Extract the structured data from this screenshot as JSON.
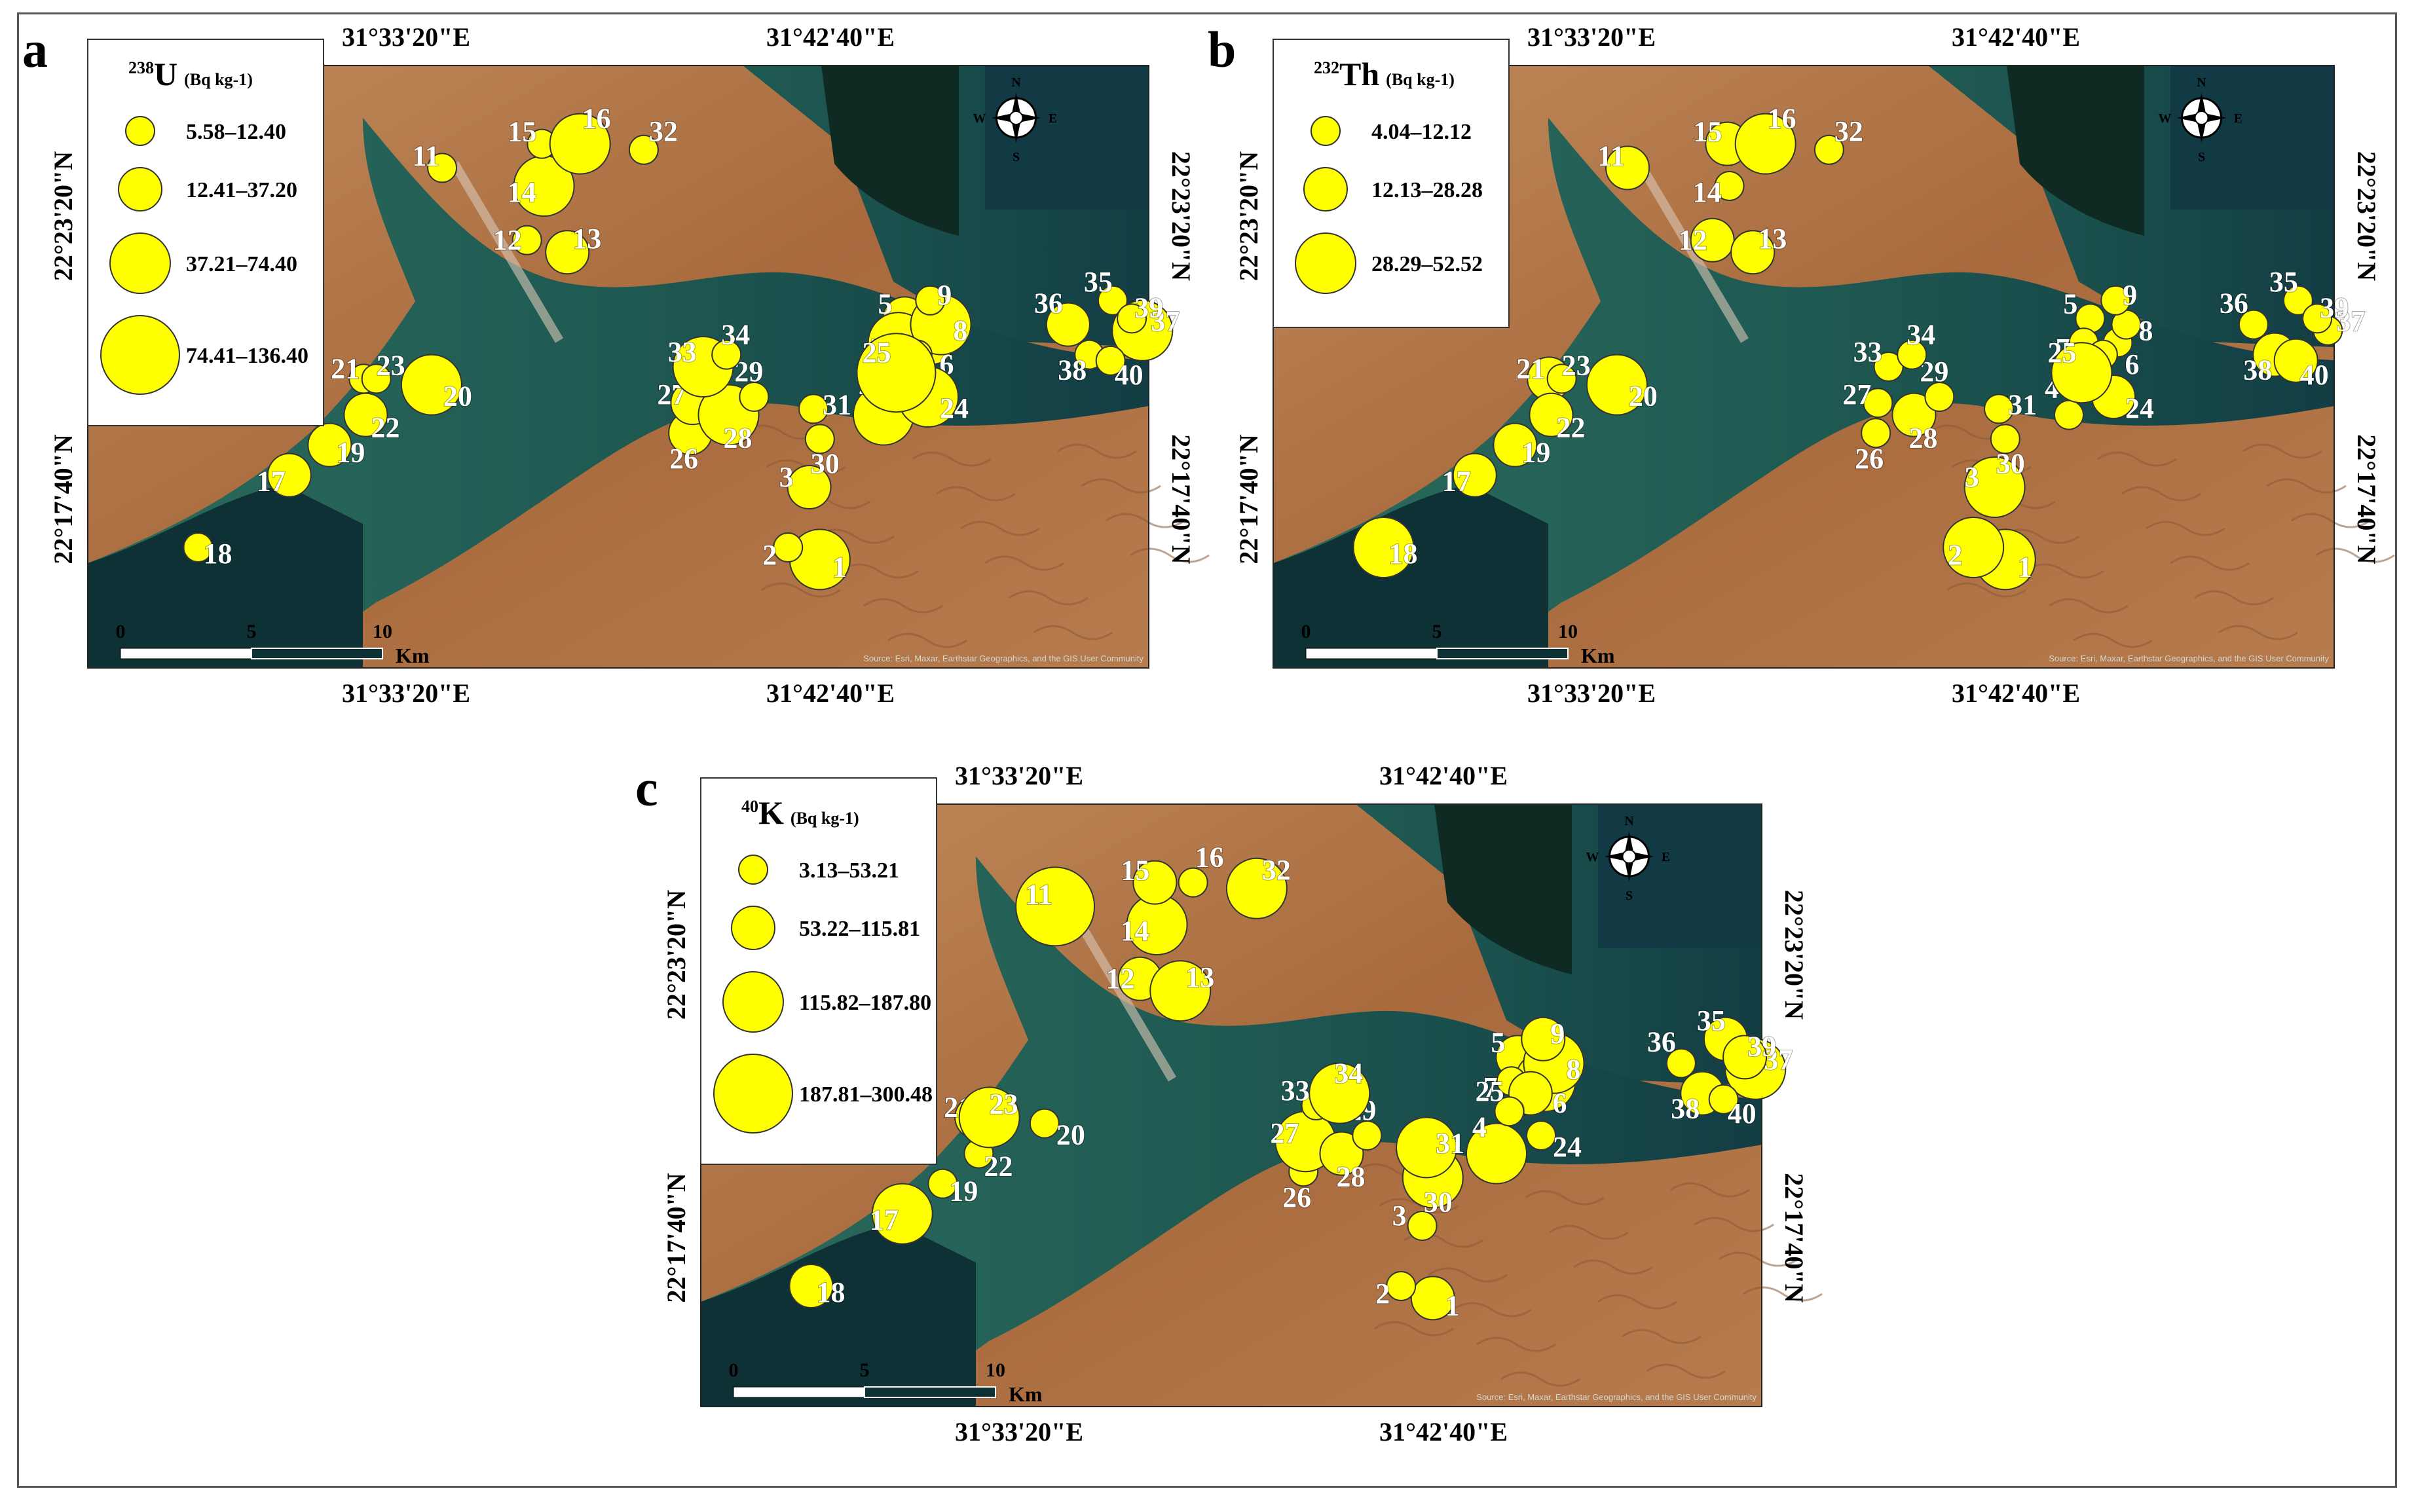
{
  "panels": [
    {
      "letter": "a",
      "nuclide_mass": "238",
      "nuclide_symbol": "U",
      "unit": "(Bq kg-1)",
      "legend_classes": [
        "5.58–12.40",
        "12.41–37.20",
        "37.21–74.40",
        "74.41–136.40"
      ],
      "points": [
        {
          "id": "1",
          "cls": 2
        },
        {
          "id": "2",
          "cls": 0
        },
        {
          "id": "3",
          "cls": 1
        },
        {
          "id": "4",
          "cls": 2
        },
        {
          "id": "5",
          "cls": 1
        },
        {
          "id": "6",
          "cls": 1
        },
        {
          "id": "7",
          "cls": 2
        },
        {
          "id": "8",
          "cls": 2
        },
        {
          "id": "9",
          "cls": 0
        },
        {
          "id": "10",
          "cls": 0
        },
        {
          "id": "11",
          "cls": 0
        },
        {
          "id": "12",
          "cls": 0
        },
        {
          "id": "13",
          "cls": 1
        },
        {
          "id": "14",
          "cls": 2
        },
        {
          "id": "15",
          "cls": 0
        },
        {
          "id": "16",
          "cls": 2
        },
        {
          "id": "17",
          "cls": 1
        },
        {
          "id": "18",
          "cls": 0
        },
        {
          "id": "19",
          "cls": 1
        },
        {
          "id": "20",
          "cls": 2
        },
        {
          "id": "21",
          "cls": 0
        },
        {
          "id": "22",
          "cls": 1
        },
        {
          "id": "23",
          "cls": 0
        },
        {
          "id": "24",
          "cls": 2
        },
        {
          "id": "25",
          "cls": 3
        },
        {
          "id": "26",
          "cls": 1
        },
        {
          "id": "27",
          "cls": 1
        },
        {
          "id": "28",
          "cls": 2
        },
        {
          "id": "29",
          "cls": 0
        },
        {
          "id": "30",
          "cls": 0
        },
        {
          "id": "31",
          "cls": 0
        },
        {
          "id": "32",
          "cls": 0
        },
        {
          "id": "33",
          "cls": 2
        },
        {
          "id": "34",
          "cls": 0
        },
        {
          "id": "35",
          "cls": 0
        },
        {
          "id": "36",
          "cls": 1
        },
        {
          "id": "37",
          "cls": 2
        },
        {
          "id": "38",
          "cls": 0
        },
        {
          "id": "39",
          "cls": 0
        },
        {
          "id": "40",
          "cls": 0
        }
      ]
    },
    {
      "letter": "b",
      "nuclide_mass": "232",
      "nuclide_symbol": "Th",
      "unit": "(Bq kg-1)",
      "legend_classes": [
        "4.04–12.12",
        "12.13–28.28",
        "28.29–52.52"
      ],
      "points": [
        {
          "id": "1",
          "cls": 2
        },
        {
          "id": "2",
          "cls": 2
        },
        {
          "id": "3",
          "cls": 2
        },
        {
          "id": "4",
          "cls": 0
        },
        {
          "id": "5",
          "cls": 0
        },
        {
          "id": "6",
          "cls": 0
        },
        {
          "id": "7",
          "cls": 0
        },
        {
          "id": "8",
          "cls": 0
        },
        {
          "id": "9",
          "cls": 0
        },
        {
          "id": "10",
          "cls": 0
        },
        {
          "id": "11",
          "cls": 1
        },
        {
          "id": "12",
          "cls": 1
        },
        {
          "id": "13",
          "cls": 1
        },
        {
          "id": "14",
          "cls": 0
        },
        {
          "id": "15",
          "cls": 1
        },
        {
          "id": "16",
          "cls": 2
        },
        {
          "id": "17",
          "cls": 1
        },
        {
          "id": "18",
          "cls": 2
        },
        {
          "id": "19",
          "cls": 1
        },
        {
          "id": "20",
          "cls": 2
        },
        {
          "id": "21",
          "cls": 1
        },
        {
          "id": "22",
          "cls": 1
        },
        {
          "id": "23",
          "cls": 0
        },
        {
          "id": "24",
          "cls": 1
        },
        {
          "id": "25",
          "cls": 2
        },
        {
          "id": "26",
          "cls": 0
        },
        {
          "id": "27",
          "cls": 0
        },
        {
          "id": "28",
          "cls": 1
        },
        {
          "id": "29",
          "cls": 0
        },
        {
          "id": "30",
          "cls": 0
        },
        {
          "id": "31",
          "cls": 0
        },
        {
          "id": "32",
          "cls": 0
        },
        {
          "id": "33",
          "cls": 0
        },
        {
          "id": "34",
          "cls": 0
        },
        {
          "id": "35",
          "cls": 0
        },
        {
          "id": "36",
          "cls": 0
        },
        {
          "id": "37",
          "cls": 0
        },
        {
          "id": "38",
          "cls": 1
        },
        {
          "id": "39",
          "cls": 0
        },
        {
          "id": "40",
          "cls": 1
        }
      ]
    },
    {
      "letter": "c",
      "nuclide_mass": "40",
      "nuclide_symbol": "K",
      "unit": "(Bq kg-1)",
      "legend_classes": [
        "3.13–53.21",
        "53.22–115.81",
        "115.82–187.80",
        "187.81–300.48"
      ],
      "points": [
        {
          "id": "1",
          "cls": 1
        },
        {
          "id": "2",
          "cls": 0
        },
        {
          "id": "3",
          "cls": 0
        },
        {
          "id": "4",
          "cls": 2
        },
        {
          "id": "5",
          "cls": 1
        },
        {
          "id": "6",
          "cls": 2
        },
        {
          "id": "7",
          "cls": 0
        },
        {
          "id": "8",
          "cls": 2
        },
        {
          "id": "9",
          "cls": 1
        },
        {
          "id": "10",
          "cls": 1
        },
        {
          "id": "11",
          "cls": 3
        },
        {
          "id": "12",
          "cls": 1
        },
        {
          "id": "13",
          "cls": 2
        },
        {
          "id": "14",
          "cls": 2
        },
        {
          "id": "15",
          "cls": 1
        },
        {
          "id": "16",
          "cls": 0
        },
        {
          "id": "17",
          "cls": 2
        },
        {
          "id": "18",
          "cls": 1
        },
        {
          "id": "19",
          "cls": 0
        },
        {
          "id": "20",
          "cls": 0
        },
        {
          "id": "21",
          "cls": 1
        },
        {
          "id": "22",
          "cls": 0
        },
        {
          "id": "23",
          "cls": 2
        },
        {
          "id": "24",
          "cls": 0
        },
        {
          "id": "25",
          "cls": 0
        },
        {
          "id": "26",
          "cls": 0
        },
        {
          "id": "27",
          "cls": 2
        },
        {
          "id": "28",
          "cls": 1
        },
        {
          "id": "29",
          "cls": 0
        },
        {
          "id": "30",
          "cls": 2
        },
        {
          "id": "31",
          "cls": 2
        },
        {
          "id": "32",
          "cls": 2
        },
        {
          "id": "33",
          "cls": 0
        },
        {
          "id": "34",
          "cls": 2
        },
        {
          "id": "35",
          "cls": 1
        },
        {
          "id": "36",
          "cls": 0
        },
        {
          "id": "37",
          "cls": 2
        },
        {
          "id": "38",
          "cls": 1
        },
        {
          "id": "39",
          "cls": 1
        },
        {
          "id": "40",
          "cls": 0
        }
      ]
    }
  ],
  "coords": {
    "lon_left": "31°33'20\"E",
    "lon_right": "31°42'40\"E",
    "lat_upper": "22°23'20\"N",
    "lat_lower": "22°17'40\"N"
  },
  "scale_bar": {
    "ticks": [
      "0",
      "5",
      "10"
    ],
    "unit": "Km"
  },
  "compass": {
    "n": "N",
    "s": "S",
    "e": "E",
    "w": "W"
  },
  "attribution": "Source: Esri, Maxar, Earthstar Geographics, and the GIS User Community",
  "colors": {
    "marker": "#ffff00",
    "water": "#1f5a52",
    "desert": "#b87a4d"
  }
}
